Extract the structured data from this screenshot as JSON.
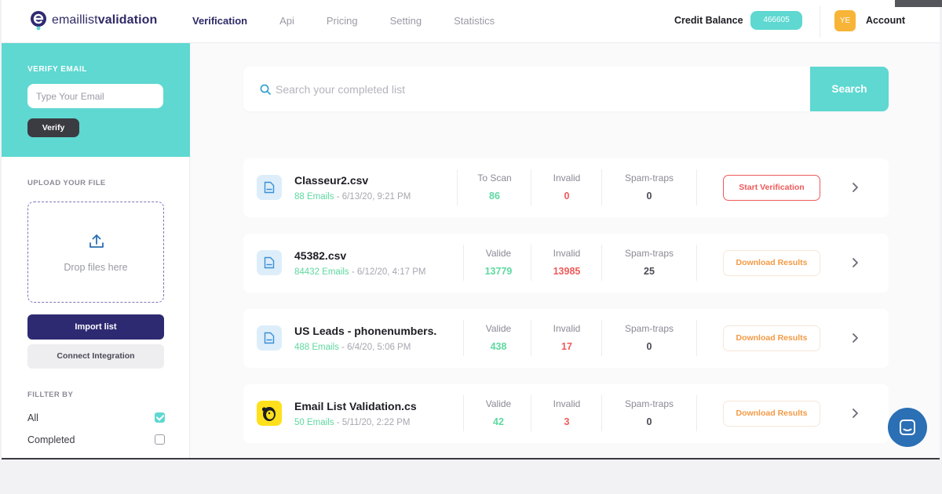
{
  "app": {
    "logo_prefix": "emaillist",
    "logo_bold": "validation"
  },
  "nav": [
    "Verification",
    "Api",
    "Pricing",
    "Setting",
    "Statistics"
  ],
  "header": {
    "credit_label": "Credit Balance",
    "credit_value": "466605",
    "avatar_initials": "YE",
    "account_label": "Account"
  },
  "sidebar": {
    "verify_title": "VERIFY EMAIL",
    "email_placeholder": "Type Your Email",
    "verify_button": "Verify",
    "upload_title": "UPLOAD YOUR FILE",
    "drop_text": "Drop files here",
    "import_button": "Import list",
    "integration_button": "Connect Integration",
    "filter_title": "FILLTER BY",
    "filters": [
      {
        "label": "All",
        "checked": true
      },
      {
        "label": "Completed",
        "checked": false
      }
    ]
  },
  "search": {
    "placeholder": "Search your completed list",
    "button": "Search"
  },
  "files": [
    {
      "name": "Classeur2.csv",
      "count": "88 Emails",
      "date": " - 6/13/20, 9:21 PM",
      "stats": [
        {
          "label": "To Scan",
          "value": "86",
          "tone": "green"
        },
        {
          "label": "Invalid",
          "value": "0",
          "tone": "red"
        },
        {
          "label": "Spam-traps",
          "value": "0",
          "tone": "gray"
        }
      ],
      "action": "Start Verification",
      "action_style": "start",
      "icon": "file-icon"
    },
    {
      "name": "45382.csv",
      "count": "84432 Emails",
      "date": " - 6/12/20, 4:17 PM",
      "stats": [
        {
          "label": "Valide",
          "value": "13779",
          "tone": "green"
        },
        {
          "label": "Invalid",
          "value": "13985",
          "tone": "red"
        },
        {
          "label": "Spam-traps",
          "value": "25",
          "tone": "gray"
        }
      ],
      "action": "Download Results",
      "action_style": "download",
      "icon": "file-icon"
    },
    {
      "name": "US Leads - phonenumbers.",
      "count": "488 Emails",
      "date": " - 6/4/20, 5:06 PM",
      "stats": [
        {
          "label": "Valide",
          "value": "438",
          "tone": "green"
        },
        {
          "label": "Invalid",
          "value": "17",
          "tone": "red"
        },
        {
          "label": "Spam-traps",
          "value": "0",
          "tone": "gray"
        }
      ],
      "action": "Download Results",
      "action_style": "download",
      "icon": "file-icon"
    },
    {
      "name": "Email List Validation.cs",
      "count": "50 Emails",
      "date": " - 5/11/20, 2:22 PM",
      "stats": [
        {
          "label": "Valide",
          "value": "42",
          "tone": "green"
        },
        {
          "label": "Invalid",
          "value": "3",
          "tone": "red"
        },
        {
          "label": "Spam-traps",
          "value": "0",
          "tone": "gray"
        }
      ],
      "action": "Download Results",
      "action_style": "download",
      "icon": "mailchimp-icon"
    }
  ],
  "colors": {
    "accent": "#5ed8d1",
    "brand": "#2e2a72",
    "valid": "#5ed8a0",
    "invalid": "#ef5a5a",
    "download": "#f39a45"
  }
}
